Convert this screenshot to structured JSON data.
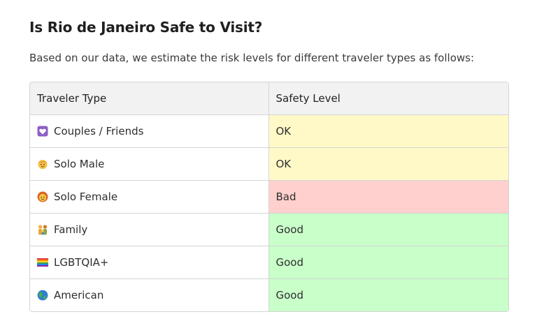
{
  "article": {
    "title": "Is Rio de Janeiro Safe to Visit?",
    "intro": "Based on our data, we estimate the risk levels for different traveler types as follows:"
  },
  "table": {
    "headers": [
      "Traveler Type",
      "Safety Level"
    ],
    "rows": [
      {
        "traveler": "Couples / Friends",
        "icon": "heart-icon",
        "level": "OK",
        "color": "#fff9c8"
      },
      {
        "traveler": "Solo Male",
        "icon": "man-icon",
        "level": "OK",
        "color": "#fff9c8"
      },
      {
        "traveler": "Solo Female",
        "icon": "woman-icon",
        "level": "Bad",
        "color": "#ffd0cd"
      },
      {
        "traveler": "Family",
        "icon": "family-icon",
        "level": "Good",
        "color": "#c9ffc9"
      },
      {
        "traveler": "LGBTQIA+",
        "icon": "rainbow-flag-icon",
        "level": "Good",
        "color": "#c9ffc9"
      },
      {
        "traveler": "American",
        "icon": "globe-icon",
        "level": "Good",
        "color": "#c9ffc9"
      }
    ]
  }
}
